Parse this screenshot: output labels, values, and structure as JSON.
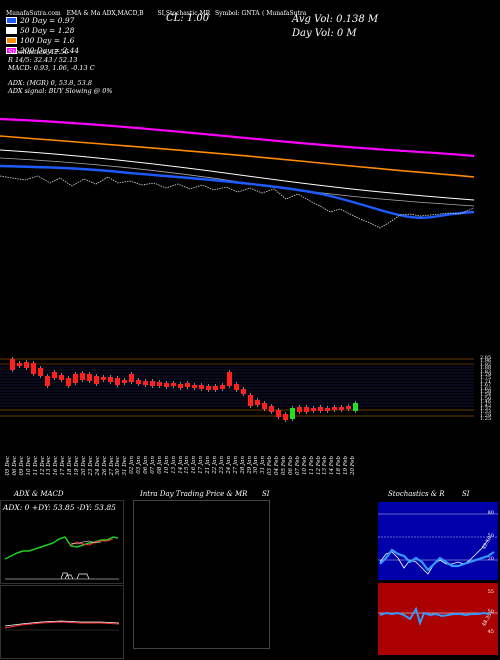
{
  "header": {
    "ma_line": "MunafaSutra.com",
    "crumb1": "EMA & Ma",
    "crumb2": "ADX,MACD,B",
    "crumb3": "SI,Stochastic,MR",
    "crumb4": "Symbol: GNTA",
    "crumb5": "( MunafaSutra",
    "cl_label": "CL: 1.00",
    "avg_vol": "Avg Vol: 0.138   M",
    "day_vol": "Day Vol: 0   M"
  },
  "legend": [
    {
      "label": "20  Day = 0.97",
      "color": "#1e5bff"
    },
    {
      "label": "50  Day = 1.28",
      "color": "#ffffff"
    },
    {
      "label": "100  Day = 1.6",
      "color": "#ff8c00"
    },
    {
      "label": "200  Day = 2.44",
      "color": "#ff00ff"
    }
  ],
  "stats": {
    "stochastics": "Stochastics: 42.56",
    "r_line": "R                14/5: 32.43 / 52.13",
    "macd": "MACD: 0.93,  1.06,  -0.13  C",
    "adx": "ADX:                              (MGR) 0,  53.8,  53.8",
    "adx_signal": "ADX  signal:                          BUY Slowing @ 0%"
  },
  "price_labels": [
    "2.85",
    "1.96",
    "1.92",
    "1.88",
    "1.83",
    "1.79",
    "1.75",
    "1.71",
    "1.67",
    "1.62",
    "1.58",
    "1.54",
    "1.50",
    "1.46",
    "1.42",
    "1.37",
    "1.33",
    "1.29",
    "1.25"
  ],
  "dates": [
    "05 Dec",
    "06 Dec",
    "09 Dec",
    "10 Dec",
    "11 Dec",
    "12 Dec",
    "13 Dec",
    "16 Dec",
    "17 Dec",
    "18 Dec",
    "19 Dec",
    "20 Dec",
    "23 Dec",
    "24 Dec",
    "26 Dec",
    "27 Dec",
    "30 Dec",
    "31 Dec",
    "02 Jan",
    "03 Jan",
    "06 Jan",
    "07 Jan",
    "08 Jan",
    "10 Jan",
    "13 Jan",
    "14 Jan",
    "15 Jan",
    "16 Jan",
    "17 Jan",
    "21 Jan",
    "22 Jan",
    "23 Jan",
    "24 Jan",
    "27 Jan",
    "28 Jan",
    "29 Jan",
    "30 Jan",
    "31 Jan",
    "03 Feb",
    "04 Feb",
    "05 Feb",
    "06 Feb",
    "07 Feb",
    "10 Feb",
    "11 Feb",
    "12 Feb",
    "13 Feb",
    "14 Feb",
    "18 Feb",
    "19 Feb",
    "20 Feb"
  ],
  "panels": {
    "adx_title": "ADX  & MACD",
    "adx_values": "ADX: 0  +DY: 53.85  -DY: 53.85",
    "intra_title": "Intra  Day Trading Price  & MR",
    "intra_si": "SI",
    "stoch_title": "Stochastics & R",
    "stoch_si": "SI",
    "stoch_labels": [
      "80",
      "50",
      "20"
    ],
    "stoch_value": "42.56",
    "rsi_labels": [
      "55",
      "50",
      "45"
    ],
    "rsi_value": "48.35"
  },
  "colors": {
    "ema20": "#1e5bff",
    "ema50": "#ffffff",
    "ema100": "#ff8c00",
    "ema200": "#ff00ff",
    "down": "#ff2020",
    "up": "#20e020",
    "adx_line": "#20d020",
    "panel_bg": "#0000aa",
    "rsi_bg": "#aa0000",
    "grid_orange": "#cc7a00"
  }
}
